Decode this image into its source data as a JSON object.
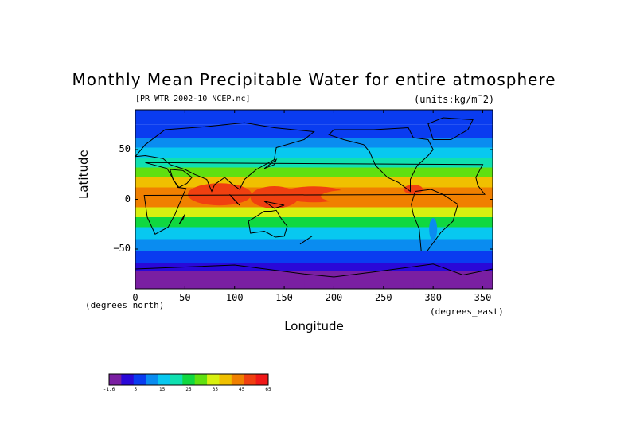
{
  "figure": {
    "title": "Monthly Mean Precipitable Water for entire atmosphere",
    "subtitle_left": "[PR_WTR_2002-10_NCEP.nc]",
    "subtitle_right": "(units:kg/m¯2)",
    "xlabel": "Longitude",
    "ylabel": "Latitude",
    "x_units": "(degrees_east)",
    "y_units": "(degrees_north)"
  },
  "map": {
    "x_ticks": [
      "0",
      "50",
      "100",
      "150",
      "200",
      "250",
      "300",
      "350"
    ],
    "y_ticks": [
      "50",
      "0",
      "−50"
    ],
    "lon_range": [
      0,
      360
    ],
    "lat_range": [
      -90,
      90
    ],
    "projection": "equirectangular",
    "coastlines": true
  },
  "colorbar": {
    "tick_labels": [
      "-1.6",
      "5",
      "15",
      "25",
      "35",
      "45",
      "65"
    ],
    "colors": [
      "#7a1fa2",
      "#2a08d8",
      "#0a3cf0",
      "#0a8cf0",
      "#08c8f0",
      "#10e0b0",
      "#10d840",
      "#60e010",
      "#d8f010",
      "#f0c000",
      "#f08000",
      "#f04010",
      "#f01818"
    ]
  }
}
